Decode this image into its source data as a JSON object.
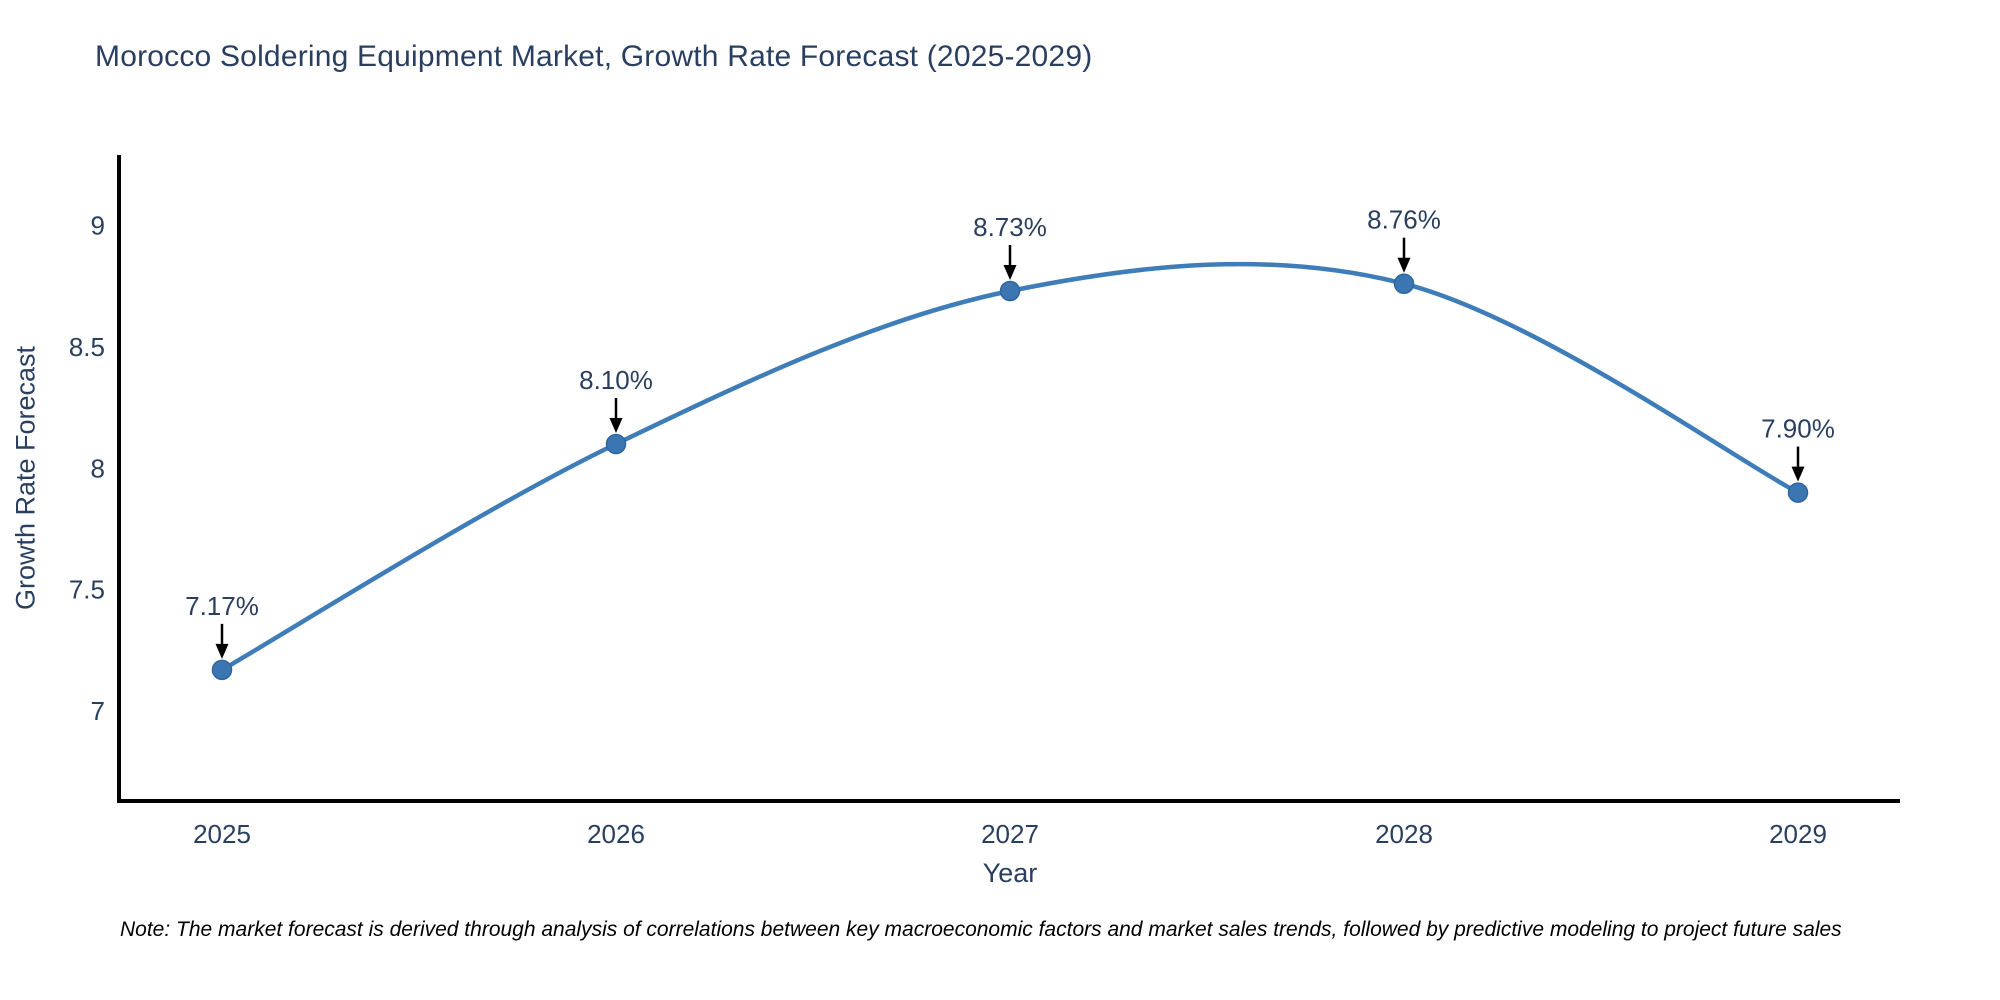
{
  "title": "Morocco Soldering Equipment Market, Growth Rate Forecast (2025-2029)",
  "note": "Note: The market forecast is derived through analysis of correlations between key macroeconomic factors and market sales trends, followed by predictive modeling to project future sales",
  "colors": {
    "title_text": "#2a3f5f",
    "tick_text": "#2a3f5f",
    "axis_line": "#000000",
    "line": "#3f7db8",
    "marker_fill": "#3b76b3",
    "marker_edge": "#2e659e",
    "annotation_text": "#2a3f5f",
    "annotation_arrow": "#000000",
    "note_text": "#000000",
    "background": "#ffffff"
  },
  "chart_data": {
    "type": "line",
    "title": "Morocco Soldering Equipment Market, Growth Rate Forecast (2025-2029)",
    "xlabel": "Year",
    "ylabel": "Growth Rate Forecast",
    "x": [
      "2025",
      "2026",
      "2027",
      "2028",
      "2029"
    ],
    "values": [
      7.17,
      8.1,
      8.73,
      8.76,
      7.9
    ],
    "point_labels": [
      "7.17%",
      "8.10%",
      "8.73%",
      "8.76%",
      "7.90%"
    ],
    "y_ticks": [
      7,
      7.5,
      8,
      8.5,
      9
    ],
    "ylim": [
      6.63,
      9.29
    ],
    "grid": false,
    "legend": false,
    "line_shape": "spline",
    "markers": true,
    "annotations": "percentage value above each point with a downward black arrow to the marker"
  }
}
